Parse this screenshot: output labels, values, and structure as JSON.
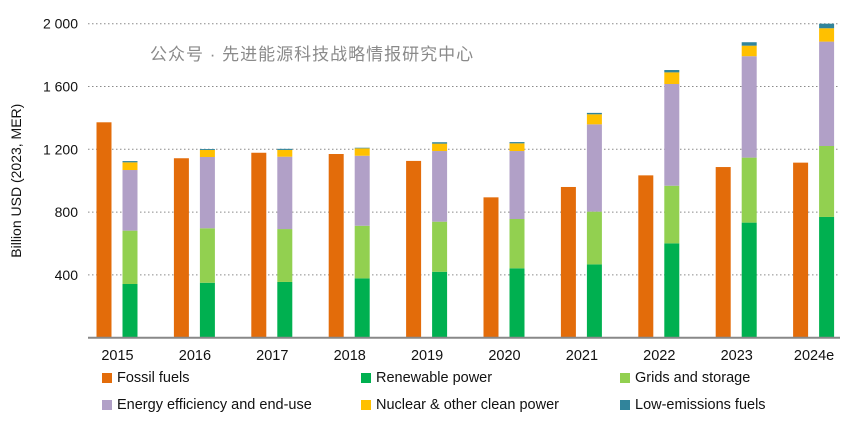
{
  "chart_data": {
    "type": "bar",
    "title": "",
    "xlabel": "",
    "ylabel": "Billion USD (2023, MER)",
    "ylim": [
      0,
      2000
    ],
    "yticks": [
      400,
      800,
      1200,
      1600,
      2000
    ],
    "ytick_labels": [
      "400",
      "800",
      "1 200",
      "1 600",
      "2 000"
    ],
    "grid": true,
    "legend_position": "bottom",
    "categories": [
      "2015",
      "2016",
      "2017",
      "2018",
      "2019",
      "2020",
      "2021",
      "2022",
      "2023",
      "2024e"
    ],
    "fossil": {
      "name": "Fossil fuels",
      "color": "#E36C0A",
      "values": [
        1372,
        1143,
        1178,
        1170,
        1126,
        894,
        960,
        1034,
        1087,
        1115
      ]
    },
    "clean_series": [
      {
        "name": "Renewable power",
        "color": "#00B050",
        "values": [
          342,
          350,
          355,
          378,
          420,
          442,
          467,
          601,
          733,
          769
        ]
      },
      {
        "name": "Grids and storage",
        "color": "#92D050",
        "values": [
          340,
          347,
          337,
          335,
          319,
          314,
          336,
          367,
          414,
          452
        ]
      },
      {
        "name": "Energy efficiency and end-use",
        "color": "#B1A0C7",
        "values": [
          386,
          454,
          461,
          446,
          450,
          433,
          556,
          648,
          646,
          665
        ]
      },
      {
        "name": "Nuclear & other clean power",
        "color": "#FFC000",
        "values": [
          49,
          45,
          43,
          47,
          47,
          49,
          64,
          74,
          67,
          85
        ]
      },
      {
        "name": "Low-emissions fuels",
        "color": "#31849B",
        "values": [
          8,
          6,
          7,
          4,
          9,
          8,
          9,
          15,
          22,
          29
        ]
      }
    ]
  },
  "watermark": "公众号 · 先进能源科技战略情报研究中心"
}
